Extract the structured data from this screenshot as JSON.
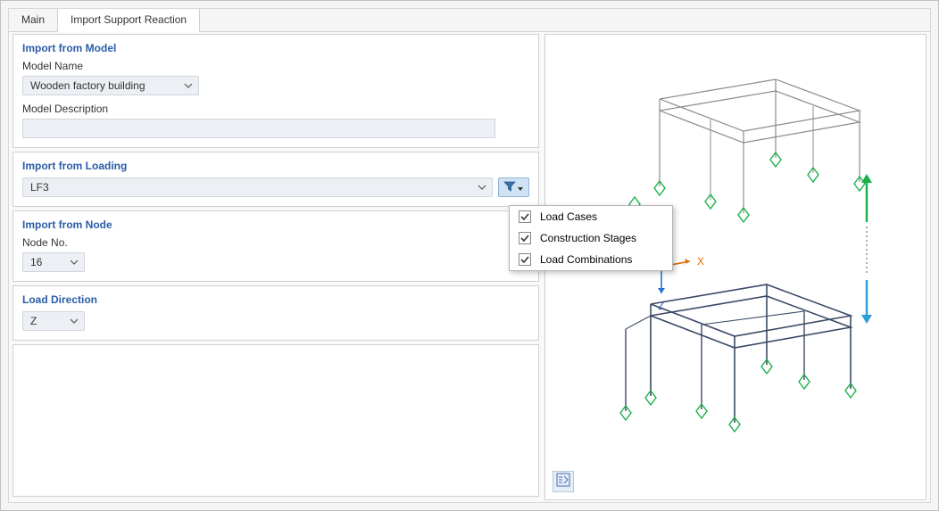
{
  "tabs": {
    "main": "Main",
    "import": "Import Support Reaction"
  },
  "panels": {
    "model": {
      "title": "Import from Model",
      "name_label": "Model Name",
      "name_value": "Wooden factory building",
      "desc_label": "Model Description",
      "desc_value": ""
    },
    "loading": {
      "title": "Import from Loading",
      "value": "LF3"
    },
    "node": {
      "title": "Import from Node",
      "no_label": "Node No.",
      "no_value": "16"
    },
    "direction": {
      "title": "Load Direction",
      "value": "Z"
    }
  },
  "filter_menu": {
    "load_cases": "Load Cases",
    "construction_stages": "Construction Stages",
    "load_combinations": "Load Combinations"
  },
  "viewport": {
    "top_structure_color": "#888c90",
    "bottom_structure_color": "#3a4a66",
    "support_color": "#1bb04a",
    "axis_x_color": "#e06a00",
    "axis_z_color": "#2a6fd6",
    "arrow_down_color": "#2a9fd6",
    "arrow_up_color": "#1bb04a",
    "dotted_color": "#888c90",
    "labels": {
      "x": "X",
      "z": "Z"
    }
  }
}
